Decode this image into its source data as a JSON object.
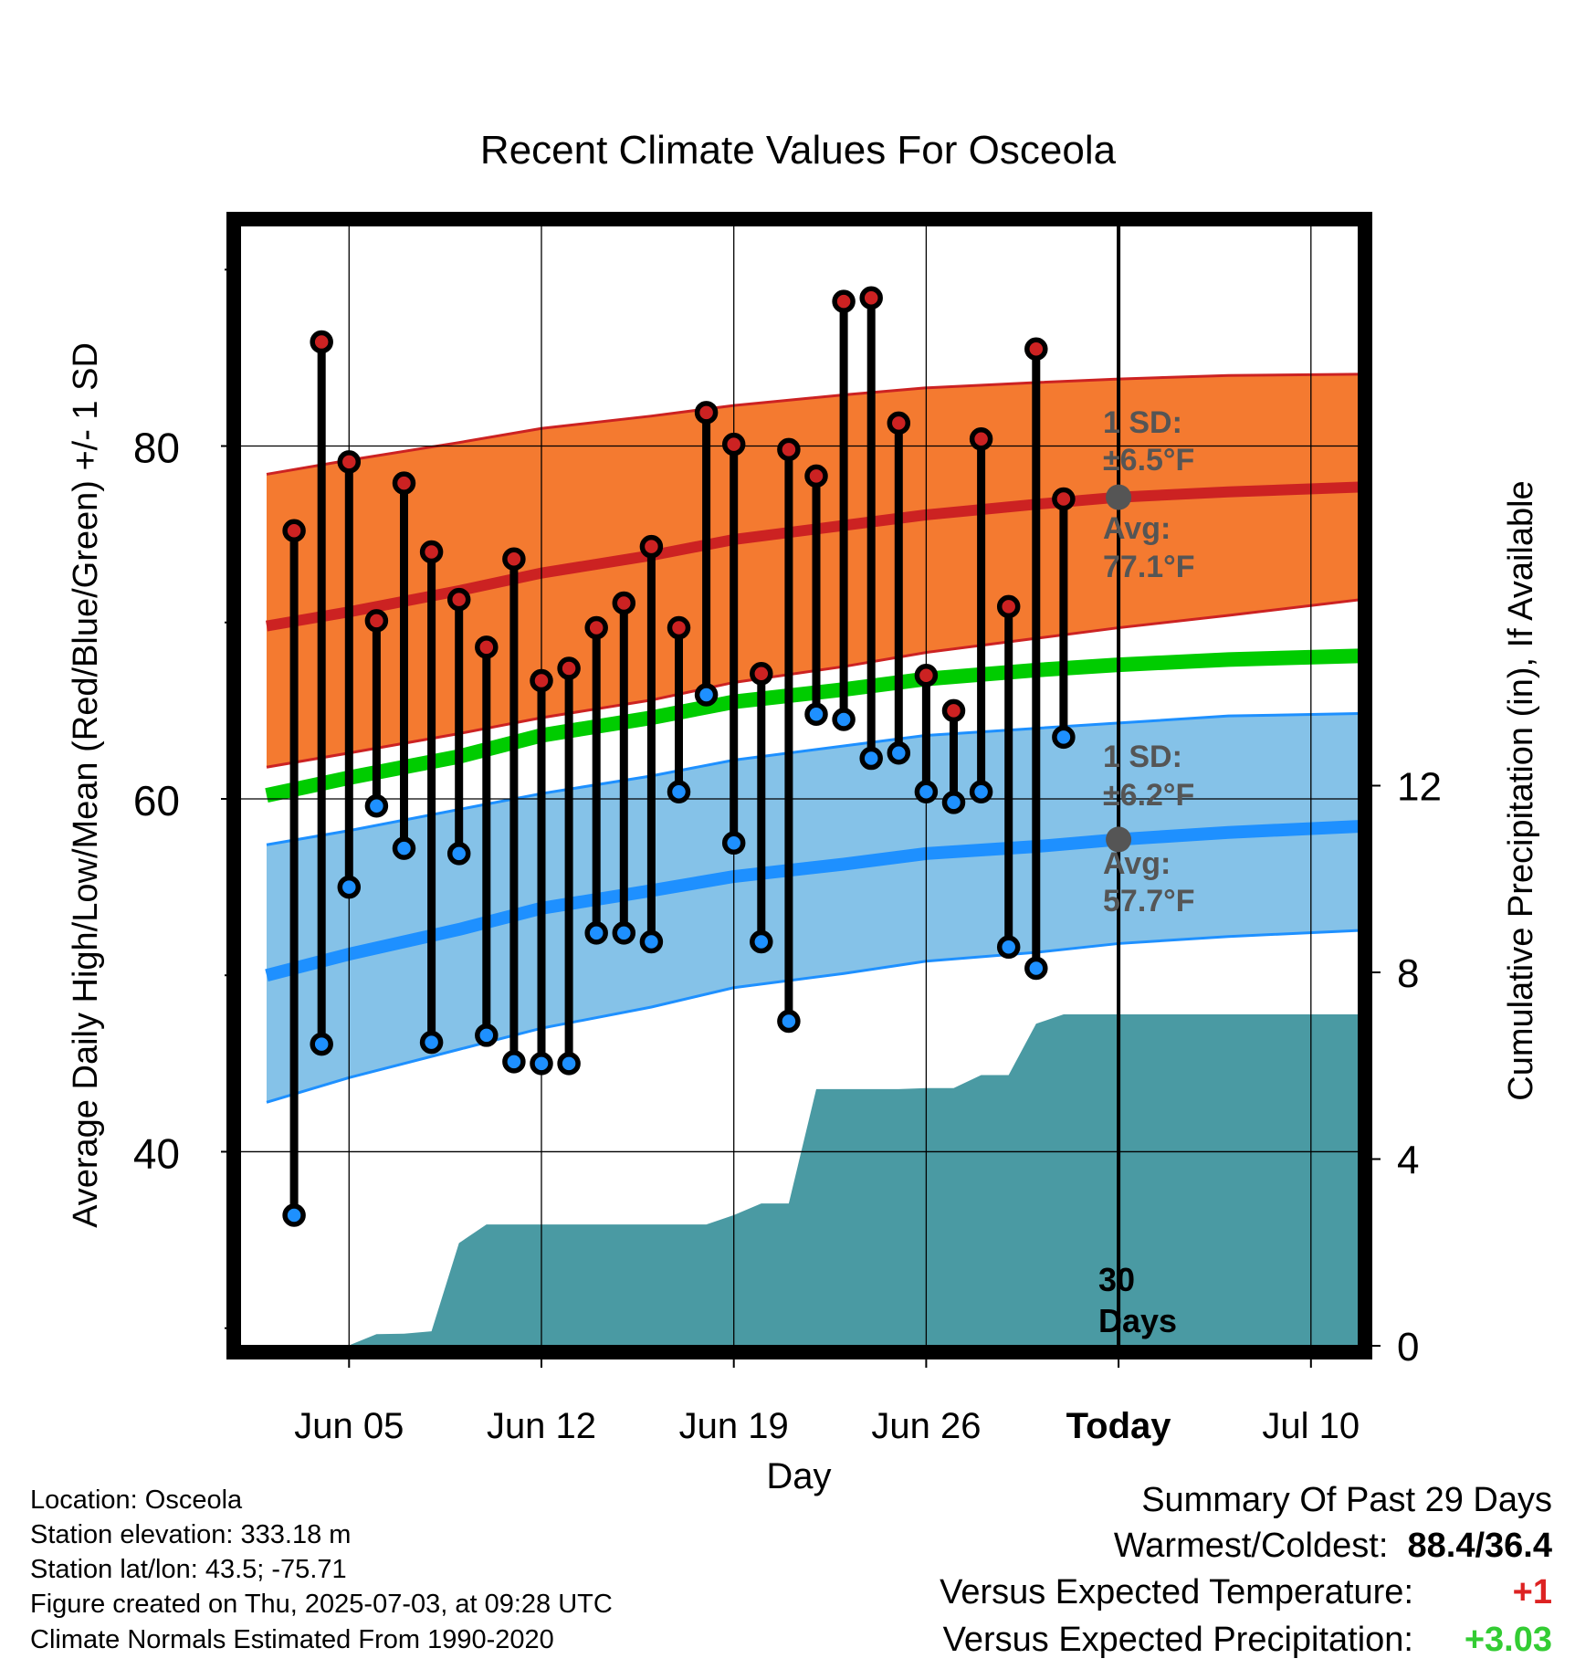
{
  "title": "Recent Climate Values For Osceola",
  "colors": {
    "high": "#cc2222",
    "low": "#1e90ff",
    "mean": "#00cc00",
    "high_band": "#f47a30",
    "low_band": "#85c2e8",
    "precip": "#4a9aa3",
    "positive": "#33cc33",
    "negative": "#dd2222",
    "avg_marker": "#555555"
  },
  "chart_data": {
    "type": "line",
    "title": "Recent Climate Values For Osceola",
    "xlabel": "Day",
    "ylabel": "Average Daily High/Low/Mean (Red/Blue/Green) +/- 1 SD",
    "y2label": "Cumulative Precipitation (in), If Available",
    "x_domain": [
      "2025-06-02",
      "2025-07-12"
    ],
    "y_range": [
      29,
      92.5
    ],
    "y2_range": [
      0,
      24
    ],
    "x_tick_labels": [
      "Jun 05",
      "Jun 12",
      "Jun 19",
      "Jun 26",
      "Today",
      "Jul 10"
    ],
    "x_tick_dates": [
      "2025-06-05",
      "2025-06-12",
      "2025-06-19",
      "2025-06-26",
      "2025-07-03",
      "2025-07-10"
    ],
    "y_tick_labels": [
      "40",
      "60",
      "80"
    ],
    "y_tick_values": [
      40,
      60,
      80
    ],
    "y_minor_ticks": [
      30,
      50,
      70,
      90
    ],
    "y2_tick_labels": [
      "0",
      "4",
      "8",
      "12"
    ],
    "y2_tick_values": [
      0,
      4,
      8,
      12
    ],
    "grid": true,
    "today": "2025-07-03",
    "normal_days": [
      "2025-06-02",
      "2025-06-05",
      "2025-06-09",
      "2025-06-12",
      "2025-06-16",
      "2025-06-19",
      "2025-06-23",
      "2025-06-26",
      "2025-06-30",
      "2025-07-03",
      "2025-07-07",
      "2025-07-12"
    ],
    "normal_high": [
      69.8,
      70.6,
      71.8,
      72.8,
      73.8,
      74.7,
      75.5,
      76.1,
      76.7,
      77.1,
      77.4,
      77.8
    ],
    "normal_high_upper": [
      78.4,
      79.2,
      80.2,
      81.0,
      81.7,
      82.3,
      82.9,
      83.3,
      83.6,
      83.8,
      84.0,
      84.1
    ],
    "normal_high_lower": [
      61.8,
      62.6,
      63.7,
      64.6,
      65.6,
      66.6,
      67.5,
      68.3,
      69.1,
      69.7,
      70.4,
      71.7
    ],
    "normal_mean": [
      60.2,
      61.2,
      62.4,
      63.6,
      64.6,
      65.5,
      66.2,
      66.8,
      67.3,
      67.6,
      67.9,
      68.2
    ],
    "normal_low": [
      50.0,
      51.2,
      52.6,
      53.8,
      54.8,
      55.6,
      56.3,
      56.9,
      57.3,
      57.7,
      58.1,
      58.6
    ],
    "normal_low_upper": [
      57.4,
      58.2,
      59.4,
      60.3,
      61.3,
      62.2,
      63.0,
      63.6,
      64.0,
      64.3,
      64.7,
      64.9
    ],
    "normal_low_lower": [
      42.8,
      44.2,
      45.8,
      47.0,
      48.2,
      49.3,
      50.1,
      50.8,
      51.3,
      51.8,
      52.2,
      52.7
    ],
    "series": [
      {
        "name": "High",
        "x": [
          "2025-06-03",
          "2025-06-04",
          "2025-06-05",
          "2025-06-06",
          "2025-06-07",
          "2025-06-08",
          "2025-06-09",
          "2025-06-10",
          "2025-06-11",
          "2025-06-12",
          "2025-06-13",
          "2025-06-14",
          "2025-06-15",
          "2025-06-16",
          "2025-06-17",
          "2025-06-18",
          "2025-06-19",
          "2025-06-20",
          "2025-06-21",
          "2025-06-22",
          "2025-06-23",
          "2025-06-24",
          "2025-06-25",
          "2025-06-26",
          "2025-06-27",
          "2025-06-28",
          "2025-06-29",
          "2025-06-30",
          "2025-07-01"
        ],
        "values": [
          75.2,
          85.9,
          79.1,
          70.1,
          77.9,
          74.0,
          71.3,
          68.6,
          73.6,
          66.7,
          67.4,
          69.7,
          71.1,
          74.3,
          69.7,
          81.9,
          80.1,
          67.1,
          79.8,
          78.3,
          88.2,
          88.4,
          81.3,
          67.0,
          65.0,
          80.4,
          70.9,
          85.5,
          77.0
        ]
      },
      {
        "name": "Low",
        "x": [
          "2025-06-03",
          "2025-06-04",
          "2025-06-05",
          "2025-06-06",
          "2025-06-07",
          "2025-06-08",
          "2025-06-09",
          "2025-06-10",
          "2025-06-11",
          "2025-06-12",
          "2025-06-13",
          "2025-06-14",
          "2025-06-15",
          "2025-06-16",
          "2025-06-17",
          "2025-06-18",
          "2025-06-19",
          "2025-06-20",
          "2025-06-21",
          "2025-06-22",
          "2025-06-23",
          "2025-06-24",
          "2025-06-25",
          "2025-06-26",
          "2025-06-27",
          "2025-06-28",
          "2025-06-29",
          "2025-06-30",
          "2025-07-01"
        ],
        "values": [
          36.4,
          46.1,
          55.0,
          59.6,
          57.2,
          46.2,
          56.9,
          46.6,
          45.1,
          45.0,
          45.0,
          52.4,
          52.4,
          51.9,
          60.4,
          65.9,
          57.5,
          51.9,
          47.4,
          64.8,
          64.5,
          62.3,
          62.6,
          60.4,
          59.8,
          60.4,
          51.6,
          50.4,
          63.5
        ]
      },
      {
        "name": "Cumulative Precipitation",
        "x": [
          "2025-06-02",
          "2025-06-03",
          "2025-06-04",
          "2025-06-05",
          "2025-06-06",
          "2025-06-07",
          "2025-06-08",
          "2025-06-09",
          "2025-06-10",
          "2025-06-11",
          "2025-06-12",
          "2025-06-13",
          "2025-06-14",
          "2025-06-15",
          "2025-06-16",
          "2025-06-17",
          "2025-06-18",
          "2025-06-19",
          "2025-06-20",
          "2025-06-21",
          "2025-06-22",
          "2025-06-23",
          "2025-06-24",
          "2025-06-25",
          "2025-06-26",
          "2025-06-27",
          "2025-06-28",
          "2025-06-29",
          "2025-06-30",
          "2025-07-01",
          "2025-07-02",
          "2025-07-03",
          "2025-07-12"
        ],
        "values": [
          0,
          0,
          0,
          0.01,
          0.25,
          0.26,
          0.31,
          2.2,
          2.6,
          2.6,
          2.6,
          2.6,
          2.6,
          2.6,
          2.6,
          2.6,
          2.6,
          2.8,
          3.05,
          3.05,
          5.5,
          5.5,
          5.5,
          5.5,
          5.52,
          5.52,
          5.8,
          5.8,
          6.9,
          7.1,
          7.1,
          7.1,
          7.1
        ]
      }
    ],
    "annotations": {
      "high_sd_line1": "1 SD:",
      "high_sd_line2": "±6.5°F",
      "high_avg_line1": "Avg:",
      "high_avg_line2": "77.1°F",
      "low_sd_line1": "1 SD:",
      "low_sd_line2": "±6.2°F",
      "low_avg_line1": "Avg:",
      "low_avg_line2": "57.7°F",
      "days_line1": "30",
      "days_line2": "Days"
    }
  },
  "footer": {
    "location": "Location: Osceola",
    "elevation": "Station elevation: 333.18 m",
    "latlon": "Station lat/lon: 43.5; -75.71",
    "created": "Figure created on Thu, 2025-07-03, at 09:28 UTC",
    "normals": "Climate Normals Estimated From 1990-2020"
  },
  "summary": {
    "heading": "Summary Of Past 29 Days",
    "warm_cold_label": "Warmest/Coldest:",
    "warm_cold_value": "88.4/36.4",
    "temp_label": "Versus Expected Temperature:",
    "temp_value": "+1",
    "precip_label": "Versus Expected Precipitation:",
    "precip_value": "+3.03"
  }
}
